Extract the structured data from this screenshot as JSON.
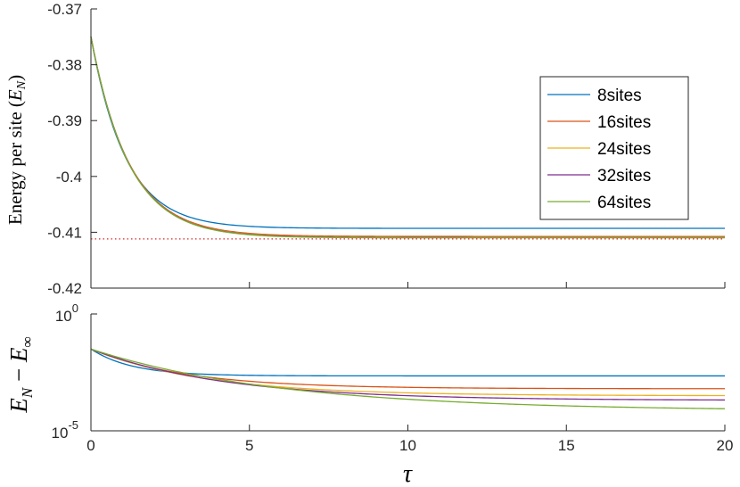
{
  "chart_data": [
    {
      "type": "line",
      "ylabel": "Energy per site (E_N)",
      "ylabel_main": "Energy per site (",
      "ylabel_var": "E",
      "ylabel_sub": "N",
      "ylabel_close": ")",
      "xlim": [
        0,
        20
      ],
      "ylim": [
        -0.42,
        -0.37
      ],
      "yticks": [
        "-0.37",
        "-0.38",
        "-0.39",
        "-0.4",
        "-0.41",
        "-0.42"
      ],
      "yticks_values": [
        -0.37,
        -0.38,
        -0.39,
        -0.4,
        -0.41,
        -0.42
      ],
      "legend_position": "right",
      "reference_line": {
        "y": -0.4112,
        "style": "dotted",
        "color": "#d62728"
      },
      "series": [
        {
          "name": "8sites",
          "color": "#0072bd",
          "y0": -0.375,
          "yinf": -0.4093,
          "tau": 1.1
        },
        {
          "name": "16sites",
          "color": "#d95319",
          "y0": -0.375,
          "yinf": -0.41075,
          "tau": 1.2
        },
        {
          "name": "24sites",
          "color": "#edb120",
          "y0": -0.375,
          "yinf": -0.4109,
          "tau": 1.2
        },
        {
          "name": "32sites",
          "color": "#7e2f8e",
          "y0": -0.375,
          "yinf": -0.41095,
          "tau": 1.2
        },
        {
          "name": "64sites",
          "color": "#77ac30",
          "y0": -0.375,
          "yinf": -0.411,
          "tau": 1.2
        }
      ]
    },
    {
      "type": "line",
      "ylabel": "E_N − E_∞",
      "xlabel": "τ",
      "yscale": "log",
      "xlim": [
        0,
        20
      ],
      "ylim_log10": [
        -5,
        0
      ],
      "xticks": [
        "0",
        "5",
        "10",
        "15",
        "20"
      ],
      "xticks_values": [
        0,
        5,
        10,
        15,
        20
      ],
      "yticks": [
        {
          "base": "10",
          "exp": "0"
        },
        {
          "base": "10",
          "exp": "-5"
        }
      ],
      "series": [
        {
          "name": "8sites",
          "color": "#0072bd",
          "log10_start": -1.5,
          "log10_end": -2.65,
          "tau": 1.3
        },
        {
          "name": "16sites",
          "color": "#d95319",
          "log10_start": -1.5,
          "log10_end": -3.2,
          "tau": 3.0
        },
        {
          "name": "24sites",
          "color": "#edb120",
          "log10_start": -1.5,
          "log10_end": -3.5,
          "tau": 3.6
        },
        {
          "name": "32sites",
          "color": "#7e2f8e",
          "log10_start": -1.5,
          "log10_end": -3.7,
          "tau": 4.2
        },
        {
          "name": "64sites",
          "color": "#77ac30",
          "log10_start": -1.5,
          "log10_end": -4.15,
          "tau": 6.0
        }
      ]
    }
  ],
  "colors": {
    "axis": "#262626",
    "background": "#ffffff"
  }
}
